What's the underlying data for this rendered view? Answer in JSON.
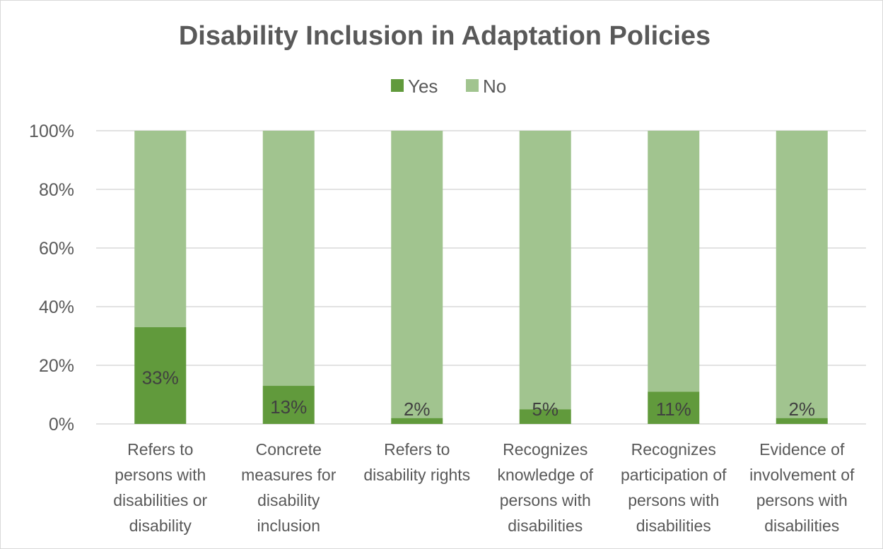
{
  "chart_data": {
    "type": "bar",
    "stacked": true,
    "title": "Disability Inclusion in Adaptation Policies",
    "categories": [
      "Refers to persons with disabilities or disability",
      "Concrete measures for disability inclusion",
      "Refers to disability rights",
      "Recognizes knowledge of persons with disabilities",
      "Recognizes participation of persons with disabilities",
      "Evidence of involvement of persons with disabilities"
    ],
    "category_lines": [
      [
        "Refers to",
        "persons with",
        "disabilities or",
        "disability"
      ],
      [
        "Concrete",
        "measures for",
        "disability",
        "inclusion"
      ],
      [
        "Refers to",
        "disability rights"
      ],
      [
        "Recognizes",
        "knowledge of",
        "persons with",
        "disabilities"
      ],
      [
        "Recognizes",
        "participation of",
        "persons with",
        "disabilities"
      ],
      [
        "Evidence of",
        "involvement of",
        "persons with",
        "disabilities"
      ]
    ],
    "series": [
      {
        "name": "Yes",
        "color": "#619a3c",
        "values": [
          33,
          13,
          2,
          5,
          11,
          2
        ]
      },
      {
        "name": "No",
        "color": "#a1c48f",
        "values": [
          67,
          87,
          98,
          95,
          89,
          98
        ]
      }
    ],
    "data_labels": [
      "33%",
      "13%",
      "2%",
      "5%",
      "11%",
      "2%"
    ],
    "ylim": [
      0,
      100
    ],
    "yticks": [
      0,
      20,
      40,
      60,
      80,
      100
    ],
    "ytick_labels": [
      "0%",
      "20%",
      "40%",
      "60%",
      "80%",
      "100%"
    ],
    "grid": true,
    "legend_position": "top-center",
    "colors": {
      "text": "#595959",
      "grid": "#d9d9d9",
      "label": "#404040"
    }
  }
}
